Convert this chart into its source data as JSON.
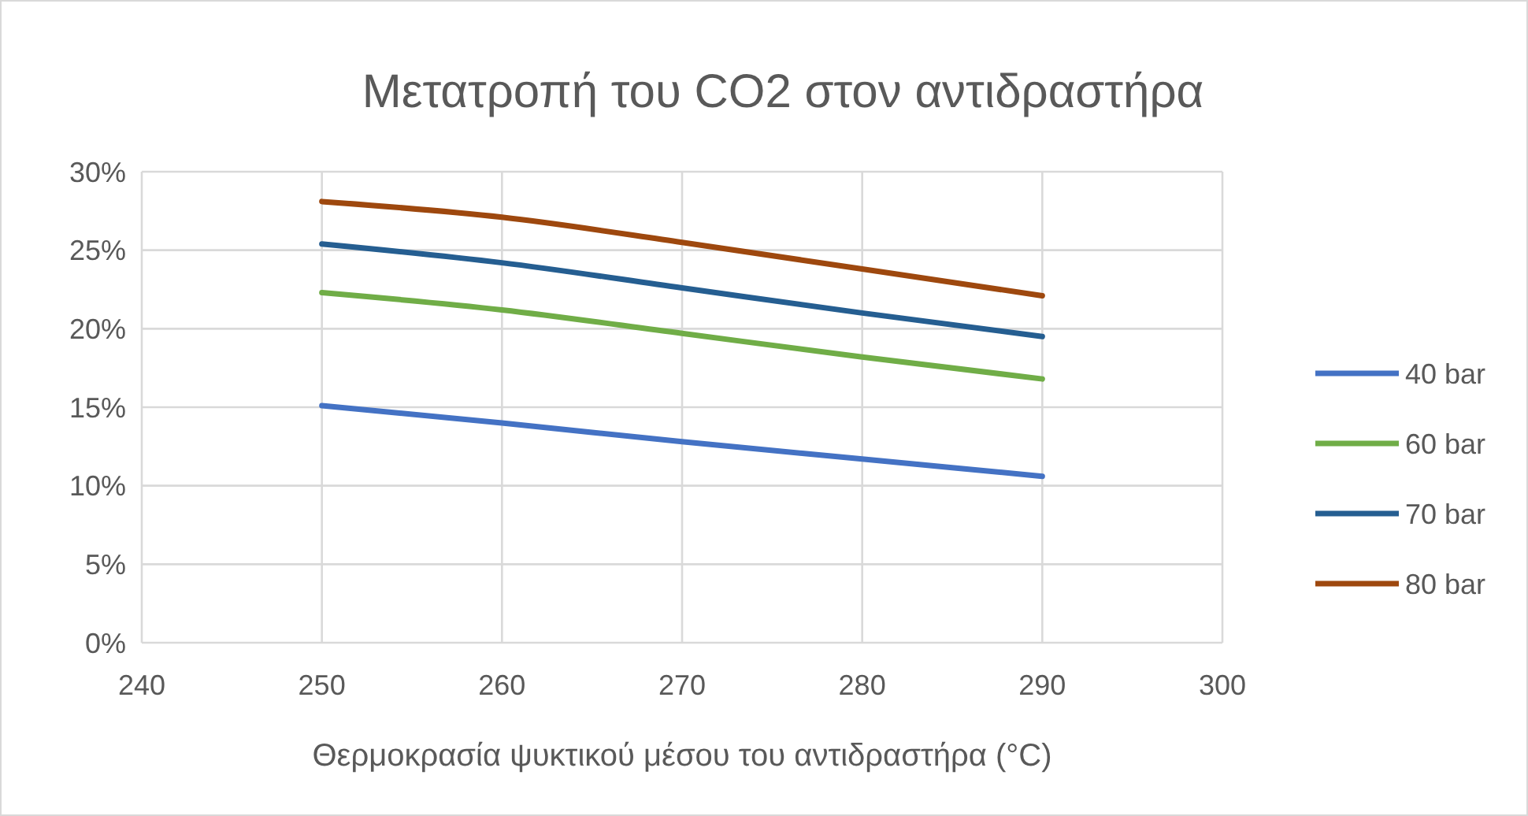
{
  "chart_data": {
    "type": "line",
    "title": "Μετατροπή του CO2 στον αντιδραστήρα",
    "xlabel": "Θερμοκρασία ψυκτικού μέσου του αντιδραστήρα (°C)",
    "x": [
      250,
      260,
      270,
      280,
      290
    ],
    "series": [
      {
        "name": "40 bar",
        "color": "#4472c4",
        "values": [
          15.1,
          14.0,
          12.8,
          11.7,
          10.6
        ]
      },
      {
        "name": "60 bar",
        "color": "#70ad47",
        "values": [
          22.3,
          21.2,
          19.7,
          18.2,
          16.8
        ]
      },
      {
        "name": "70 bar",
        "color": "#255e91",
        "values": [
          25.4,
          24.2,
          22.6,
          21.0,
          19.5
        ]
      },
      {
        "name": "80 bar",
        "color": "#9e480e",
        "values": [
          28.1,
          27.1,
          25.5,
          23.8,
          22.1
        ]
      }
    ],
    "xlim": [
      240,
      300
    ],
    "xticks": [
      240,
      250,
      260,
      270,
      280,
      290,
      300
    ],
    "ylim": [
      0,
      30
    ],
    "yticks": [
      {
        "value": 0,
        "label": "0%"
      },
      {
        "value": 5,
        "label": "5%"
      },
      {
        "value": 10,
        "label": "10%"
      },
      {
        "value": 15,
        "label": "15%"
      },
      {
        "value": 20,
        "label": "20%"
      },
      {
        "value": 25,
        "label": "25%"
      },
      {
        "value": 30,
        "label": "30%"
      }
    ],
    "grid": true,
    "legend": "right",
    "marker": "none",
    "line_style": "solid"
  }
}
